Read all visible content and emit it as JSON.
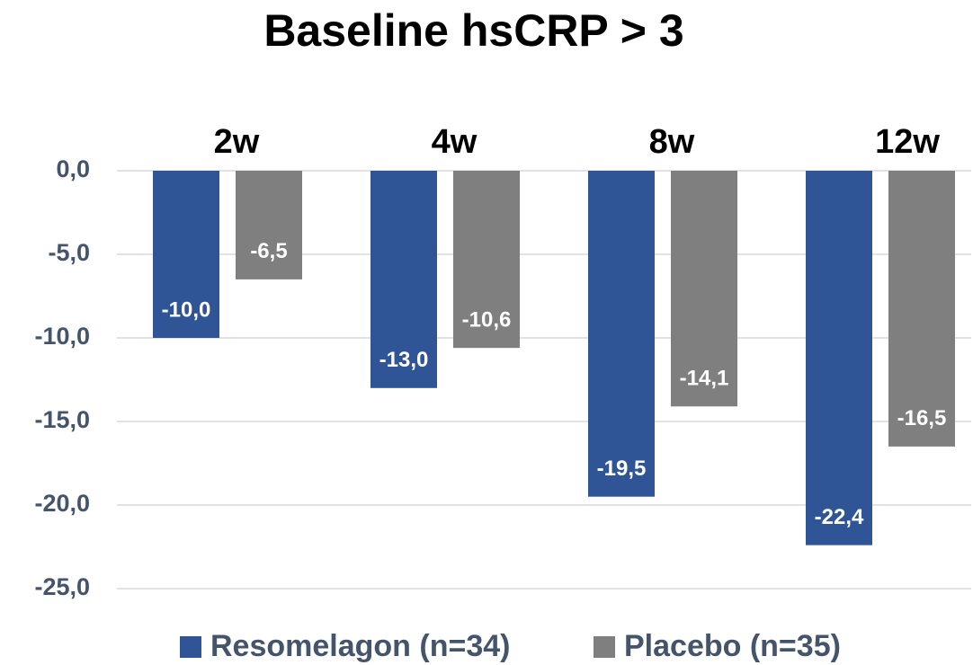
{
  "chart_data": {
    "type": "bar",
    "title": "Baseline hsCRP > 3",
    "categories": [
      "2w",
      "4w",
      "8w",
      "12w"
    ],
    "series": [
      {
        "name": "Resomelagon (n=34)",
        "color": "#2f5597",
        "values": [
          -10.0,
          -13.0,
          -19.5,
          -22.4
        ],
        "value_labels": [
          "-10,0",
          "-13,0",
          "-19,5",
          "-22,4"
        ]
      },
      {
        "name": "Placebo (n=35)",
        "color": "#7f7f7f",
        "values": [
          -6.5,
          -10.6,
          -14.1,
          -16.5
        ],
        "value_labels": [
          "-6,5",
          "-10,6",
          "-14,1",
          "-16,5"
        ]
      }
    ],
    "ylim": [
      -25,
      0
    ],
    "yticks": [
      {
        "value": 0,
        "label": "0,0"
      },
      {
        "value": -5,
        "label": "-5,0"
      },
      {
        "value": -10,
        "label": "-10,0"
      },
      {
        "value": -15,
        "label": "-15,0"
      },
      {
        "value": -20,
        "label": "-20,0"
      },
      {
        "value": -25,
        "label": "-25,0"
      }
    ],
    "grid": true,
    "legend": "bottom"
  }
}
